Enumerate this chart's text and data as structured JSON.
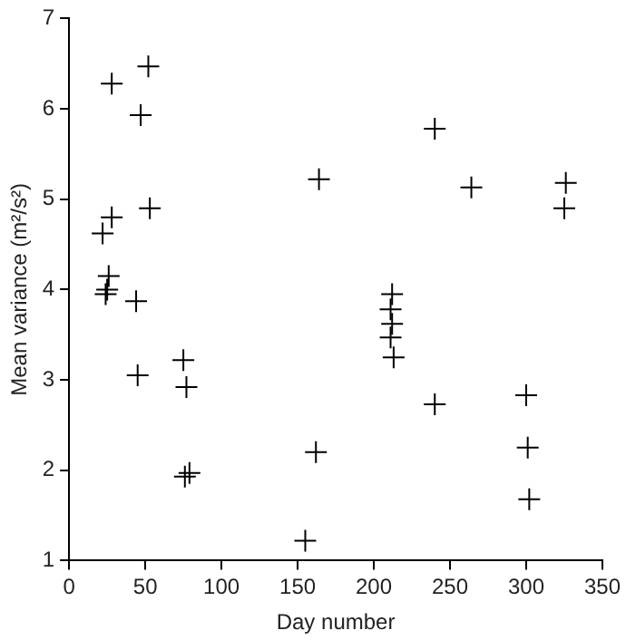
{
  "chart_data": {
    "type": "scatter",
    "xlabel": "Day number",
    "ylabel": "Mean variance (m²/s²)",
    "marker": "cross",
    "grid": false,
    "legend": false,
    "xlim": [
      0,
      350
    ],
    "xticks": [
      0,
      50,
      100,
      150,
      200,
      250,
      300,
      350
    ],
    "ylim": [
      1,
      7
    ],
    "yticks": [
      1,
      2,
      3,
      4,
      5,
      6,
      7
    ],
    "series": [
      {
        "color": "#000000",
        "x": [
          22,
          24,
          25,
          26,
          28,
          28,
          44,
          45,
          47,
          52,
          53,
          75,
          77,
          76,
          79,
          155,
          162,
          164,
          212,
          211,
          212,
          211,
          213,
          240,
          240,
          264,
          300,
          301,
          302,
          326,
          325
        ],
        "values": [
          4.62,
          3.95,
          4.0,
          4.15,
          6.28,
          4.8,
          3.87,
          3.05,
          5.93,
          6.47,
          4.9,
          3.22,
          2.92,
          1.93,
          1.97,
          1.22,
          2.2,
          5.22,
          3.95,
          3.78,
          3.62,
          3.47,
          3.25,
          5.78,
          2.73,
          5.13,
          2.83,
          2.25,
          1.68,
          5.18,
          4.9
        ]
      }
    ]
  }
}
